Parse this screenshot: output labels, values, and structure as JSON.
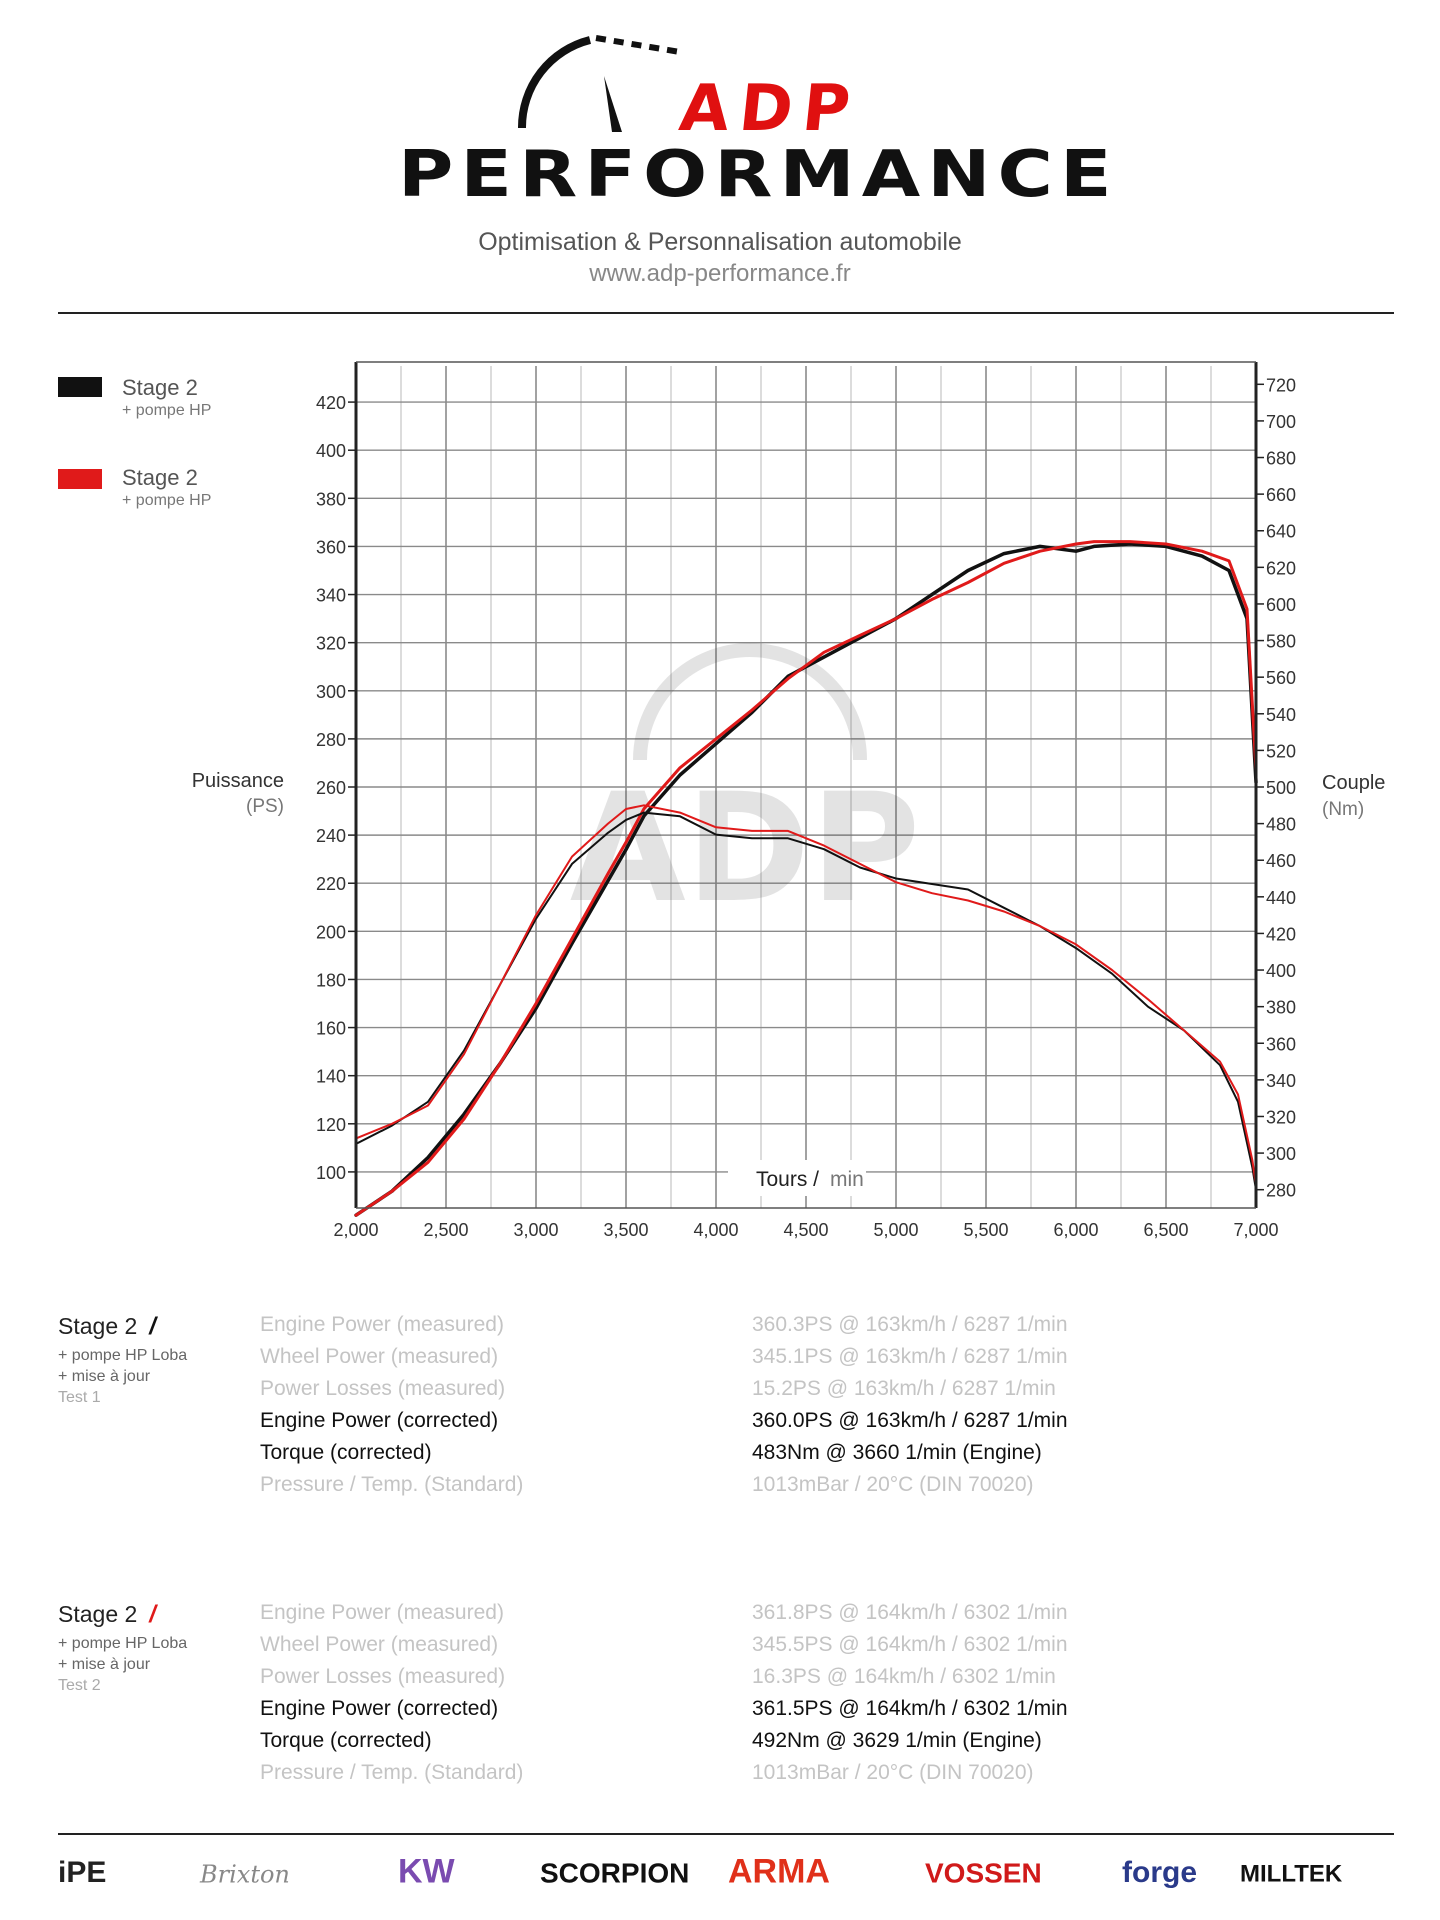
{
  "header": {
    "brand_top": "ADP",
    "brand_bottom": "PERFORMANCE",
    "tagline": "Optimisation & Personnalisation automobile",
    "website": "www.adp-performance.fr"
  },
  "legend": [
    {
      "name": "Stage 2",
      "sub": "+ pompe HP",
      "color": "#111111"
    },
    {
      "name": "Stage 2",
      "sub": "+ pompe HP",
      "color": "#e01a1a"
    }
  ],
  "axes": {
    "left_name": "Puissance",
    "left_unit": "(PS)",
    "right_name": "Couple",
    "right_unit": "(Nm)",
    "x_name": "Tours /",
    "x_unit": "min"
  },
  "chart_data": {
    "type": "line",
    "x_ticks": [
      "2,000",
      "2,500",
      "3,000",
      "3,500",
      "4,000",
      "4,500",
      "5,000",
      "5,500",
      "6,000",
      "6,500",
      "7,000"
    ],
    "left_ticks": [
      "100",
      "120",
      "140",
      "160",
      "180",
      "200",
      "220",
      "240",
      "260",
      "280",
      "300",
      "320",
      "340",
      "360",
      "380",
      "400",
      "420"
    ],
    "right_ticks": [
      "280",
      "300",
      "320",
      "340",
      "360",
      "380",
      "400",
      "420",
      "440",
      "460",
      "480",
      "500",
      "520",
      "540",
      "560",
      "580",
      "600",
      "620",
      "640",
      "660",
      "680",
      "700",
      "720"
    ],
    "xlim": [
      2000,
      7000
    ],
    "ylim_left": [
      85,
      435
    ],
    "ylim_right": [
      270,
      730
    ],
    "series": [
      {
        "name": "Stage 2 Test 1 power",
        "axis": "left",
        "color": "#111111",
        "width": 3.5,
        "x": [
          2000,
          2200,
          2400,
          2600,
          2800,
          3000,
          3200,
          3400,
          3500,
          3600,
          3800,
          4000,
          4200,
          4400,
          4600,
          4800,
          5000,
          5200,
          5400,
          5600,
          5800,
          6000,
          6100,
          6300,
          6500,
          6700,
          6850,
          6950,
          7000
        ],
        "y": [
          82,
          92,
          106,
          124,
          145,
          168,
          195,
          221,
          234,
          248,
          265,
          278,
          291,
          306,
          314,
          322,
          330,
          340,
          350,
          357,
          360,
          358,
          360,
          361,
          360,
          356,
          350,
          330,
          262
        ]
      },
      {
        "name": "Stage 2 Test 2 power",
        "axis": "left",
        "color": "#e01a1a",
        "width": 3,
        "x": [
          2000,
          2200,
          2400,
          2600,
          2800,
          3000,
          3200,
          3400,
          3500,
          3600,
          3800,
          4000,
          4200,
          4400,
          4600,
          4800,
          5000,
          5200,
          5400,
          5600,
          5800,
          6000,
          6100,
          6300,
          6500,
          6700,
          6850,
          6950,
          7000
        ],
        "y": [
          82,
          92,
          104,
          122,
          145,
          170,
          197,
          224,
          237,
          251,
          268,
          280,
          292,
          305,
          316,
          323,
          330,
          338,
          345,
          353,
          358,
          361,
          362,
          362,
          361,
          358,
          354,
          334,
          267
        ]
      },
      {
        "name": "Stage 2 Test 1 torque",
        "axis": "right",
        "color": "#111111",
        "width": 2,
        "x": [
          2000,
          2200,
          2400,
          2600,
          2800,
          3000,
          3200,
          3400,
          3500,
          3600,
          3800,
          4000,
          4200,
          4400,
          4600,
          4800,
          5000,
          5200,
          5400,
          5600,
          5800,
          6000,
          6200,
          6400,
          6600,
          6800,
          6900,
          6980,
          7000
        ],
        "y": [
          305,
          315,
          328,
          356,
          392,
          428,
          458,
          475,
          482,
          486,
          484,
          474,
          472,
          472,
          466,
          456,
          450,
          447,
          444,
          434,
          424,
          412,
          398,
          380,
          367,
          348,
          328,
          292,
          280
        ]
      },
      {
        "name": "Stage 2 Test 2 torque",
        "axis": "right",
        "color": "#e01a1a",
        "width": 2,
        "x": [
          2000,
          2200,
          2400,
          2600,
          2800,
          3000,
          3200,
          3400,
          3500,
          3600,
          3800,
          4000,
          4200,
          4400,
          4600,
          4800,
          5000,
          5200,
          5400,
          5600,
          5800,
          6000,
          6200,
          6400,
          6600,
          6800,
          6900,
          6980,
          7000
        ],
        "y": [
          308,
          316,
          326,
          354,
          392,
          430,
          462,
          480,
          488,
          490,
          486,
          478,
          476,
          476,
          468,
          458,
          448,
          442,
          438,
          432,
          424,
          414,
          400,
          384,
          367,
          350,
          332,
          296,
          282
        ]
      }
    ]
  },
  "results": [
    {
      "title": "Stage 2",
      "slash": "/",
      "slash_color": "#111111",
      "subs": [
        "+ pompe HP Loba",
        "+ mise à jour",
        "Test 1"
      ],
      "rows": [
        {
          "label": "Engine Power (measured)",
          "value": "360.3PS @ 163km/h / 6287 1/min",
          "dark": false
        },
        {
          "label": "Wheel Power (measured)",
          "value": "345.1PS @ 163km/h / 6287 1/min",
          "dark": false
        },
        {
          "label": "Power Losses (measured)",
          "value": "15.2PS @ 163km/h / 6287 1/min",
          "dark": false
        },
        {
          "label": "Engine Power (corrected)",
          "value": "360.0PS @ 163km/h / 6287 1/min",
          "dark": true
        },
        {
          "label": "Torque (corrected)",
          "value": "483Nm @ 3660 1/min (Engine)",
          "dark": true
        },
        {
          "label": "Pressure / Temp. (Standard)",
          "value": "1013mBar / 20°C    (DIN 70020)",
          "dark": false
        }
      ]
    },
    {
      "title": "Stage 2",
      "slash": "/",
      "slash_color": "#e01a1a",
      "subs": [
        "+ pompe HP Loba",
        "+ mise à jour",
        "Test 2"
      ],
      "rows": [
        {
          "label": "Engine Power (measured)",
          "value": "361.8PS @ 164km/h / 6302 1/min",
          "dark": false
        },
        {
          "label": "Wheel Power (measured)",
          "value": "345.5PS @ 164km/h / 6302 1/min",
          "dark": false
        },
        {
          "label": "Power Losses (measured)",
          "value": "16.3PS @ 164km/h / 6302 1/min",
          "dark": false
        },
        {
          "label": "Engine Power (corrected)",
          "value": "361.5PS @ 164km/h / 6302 1/min",
          "dark": true
        },
        {
          "label": "Torque (corrected)",
          "value": "492Nm @ 3629 1/min (Engine)",
          "dark": true
        },
        {
          "label": "Pressure / Temp. (Standard)",
          "value": "1013mBar / 20°C    (DIN 70020)",
          "dark": false
        }
      ]
    }
  ],
  "sponsors": [
    {
      "name": "iPE",
      "color": "#222222"
    },
    {
      "name": "Brixton",
      "color": "#888888"
    },
    {
      "name": "KW",
      "color": "#7a4bb0"
    },
    {
      "name": "SCORPION",
      "color": "#111111"
    },
    {
      "name": "ARMA",
      "color": "#e0301a"
    },
    {
      "name": "VOSSEN",
      "color": "#d01a1a"
    },
    {
      "name": "forge",
      "color": "#2a3a8a"
    },
    {
      "name": "MILLTEK",
      "color": "#111111"
    }
  ]
}
